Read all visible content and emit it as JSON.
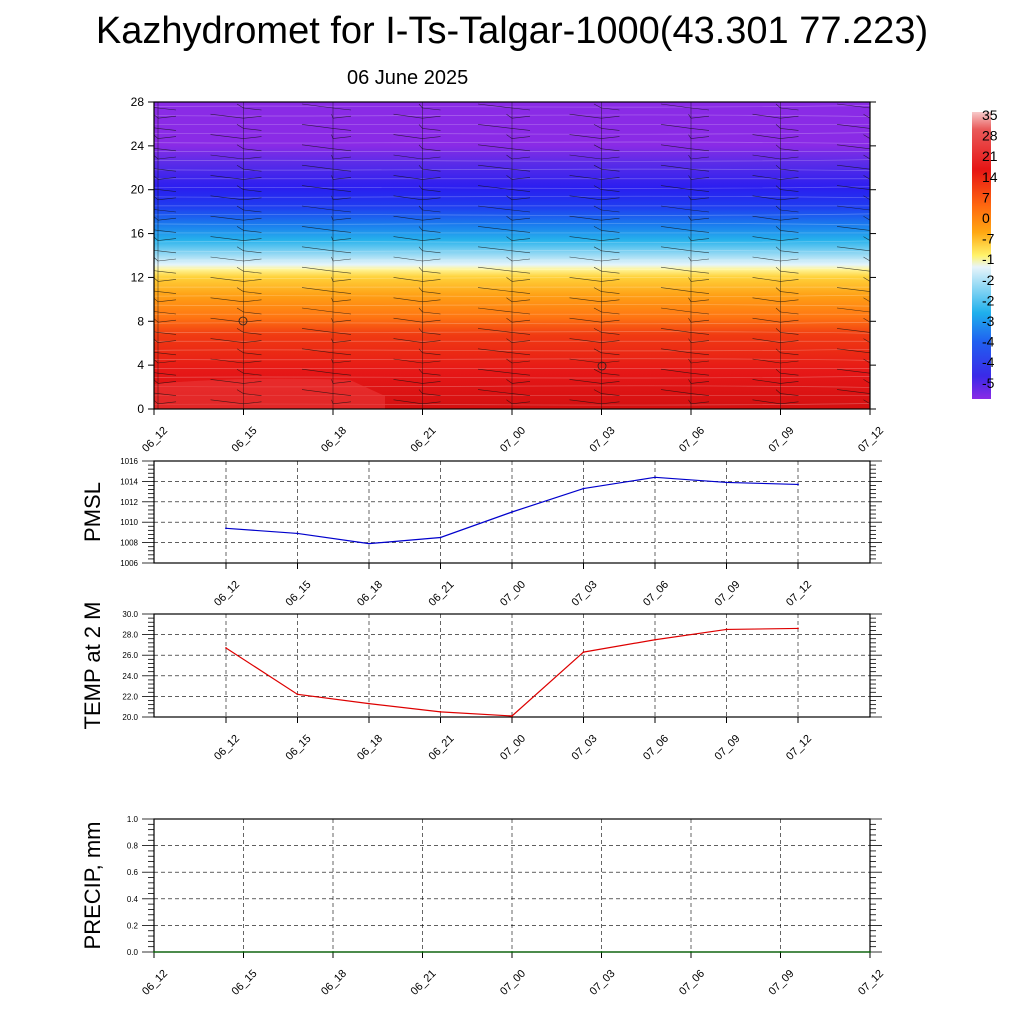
{
  "header": {
    "title": "Kazhydromet for I-Ts-Talgar-1000(43.301 77.223)",
    "subtitle": "06 June 2025"
  },
  "chart_data": [
    {
      "type": "heatmap",
      "name": "cross-section",
      "x_labels": [
        "06_12",
        "06_15",
        "06_18",
        "06_21",
        "07_00",
        "07_03",
        "07_06",
        "07_09",
        "07_12"
      ],
      "y_ticks": [
        0,
        4,
        8,
        12,
        16,
        20,
        24,
        28
      ],
      "ylim": [
        0,
        28
      ],
      "colorbar_labels": [
        "35",
        "28",
        "21",
        "14",
        "7",
        "0",
        "-7",
        "-1",
        "-2",
        "-2",
        "-3",
        "-4",
        "-4",
        "-5"
      ],
      "colorbar_range": [
        -56,
        35
      ],
      "colors": {
        "top": "#8a2be6",
        "blue": "#2424e6",
        "cyan": "#1fb0ec",
        "yellow": "#fff36b",
        "orange": "#ff9a12",
        "red": "#e91815"
      },
      "temperature_profile": [
        {
          "level": 0,
          "value": 28
        },
        {
          "level": 4,
          "value": 21
        },
        {
          "level": 8,
          "value": 10
        },
        {
          "level": 12,
          "value": -7
        },
        {
          "level": 13.5,
          "value": -14
        },
        {
          "level": 16,
          "value": -28
        },
        {
          "level": 19,
          "value": -49
        },
        {
          "level": 24,
          "value": -56
        },
        {
          "level": 28,
          "value": -56
        }
      ]
    },
    {
      "type": "line",
      "ylabel": "PMSL",
      "x_labels": [
        "06_12",
        "06_15",
        "06_18",
        "06_21",
        "07_00",
        "07_03",
        "07_06",
        "07_09",
        "07_12"
      ],
      "y_ticks": [
        "1006",
        "1008",
        "1010",
        "1012",
        "1014",
        "1016"
      ],
      "ylim": [
        1006,
        1016
      ],
      "values": [
        1009.4,
        1008.9,
        1007.9,
        1008.5,
        1011.0,
        1013.3,
        1014.4,
        1013.9,
        1013.7
      ],
      "color": "#0000cc"
    },
    {
      "type": "line",
      "ylabel": "TEMP at 2 M",
      "x_labels": [
        "06_12",
        "06_15",
        "06_18",
        "06_21",
        "07_00",
        "07_03",
        "07_06",
        "07_09",
        "07_12"
      ],
      "y_ticks": [
        "20.0",
        "22.0",
        "24.0",
        "26.0",
        "28.0",
        "30.0"
      ],
      "ylim": [
        20,
        30
      ],
      "values": [
        26.7,
        22.2,
        21.3,
        20.5,
        20.1,
        26.3,
        27.5,
        28.5,
        28.6
      ],
      "color": "#dd0000"
    },
    {
      "type": "line",
      "ylabel": "PRECIP, mm",
      "x_labels": [
        "06_12",
        "06_15",
        "06_18",
        "06_21",
        "07_00",
        "07_03",
        "07_06",
        "07_09",
        "07_12"
      ],
      "y_ticks": [
        "0.0",
        "0.2",
        "0.4",
        "0.6",
        "0.8",
        "1.0"
      ],
      "ylim": [
        0,
        1
      ],
      "values": [
        0,
        0,
        0,
        0,
        0,
        0,
        0,
        0,
        0
      ],
      "color": "#006400"
    }
  ]
}
